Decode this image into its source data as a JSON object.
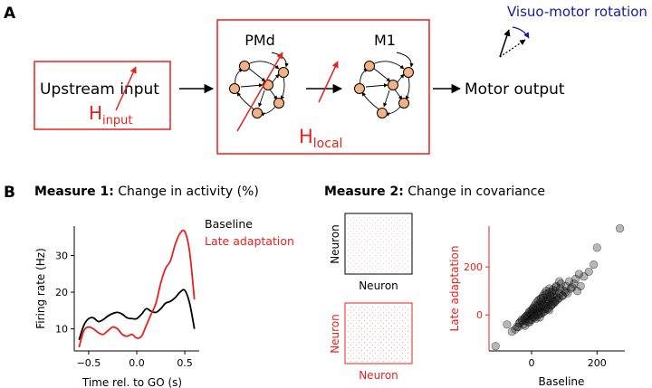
{
  "panel_a": {
    "label": "A",
    "upstream_label": "Upstream input",
    "h_input_main": "H",
    "h_input_sub": "input",
    "pmd_label": "PMd",
    "m1_label": "M1",
    "h_local_main": "H",
    "h_local_sub": "local",
    "motor_output": "Motor output",
    "rotation_label": "Visuo-motor rotation"
  },
  "panel_b": {
    "label": "B",
    "measure1_bold": "Measure 1:",
    "measure1_text": " Change in activity (%)",
    "measure2_bold": "Measure 2:",
    "measure2_text": " Change in covariance",
    "cov_baseline_ylabel": "Neuron",
    "cov_baseline_xlabel": "Neuron",
    "cov_late_ylabel": "Neuron",
    "cov_late_xlabel": "Neuron"
  },
  "colors": {
    "red": "#e8201c",
    "node_fill": "#f4b183",
    "navy": "#1a1a9e",
    "black": "#000000"
  },
  "chart_data": [
    {
      "type": "line",
      "title": "",
      "xlabel": "Time rel. to GO (s)",
      "ylabel": "Firing rate (Hz)",
      "xlim": [
        -0.65,
        0.65
      ],
      "ylim": [
        4,
        38
      ],
      "xticks": [
        -0.5,
        0.0,
        0.5
      ],
      "xtick_labels": [
        "−0.5",
        "0.0",
        "0.5"
      ],
      "yticks": [
        10,
        20,
        30
      ],
      "ytick_labels": [
        "10",
        "20",
        "30"
      ],
      "legend": "top-right",
      "series": [
        {
          "name": "Baseline",
          "color": "#000000",
          "x": [
            -0.6,
            -0.55,
            -0.5,
            -0.45,
            -0.4,
            -0.35,
            -0.3,
            -0.25,
            -0.2,
            -0.15,
            -0.1,
            -0.05,
            0.0,
            0.05,
            0.1,
            0.15,
            0.2,
            0.25,
            0.3,
            0.35,
            0.4,
            0.45,
            0.5,
            0.55,
            0.6
          ],
          "values": [
            7,
            11,
            12.8,
            13,
            12,
            12.5,
            13.5,
            14.2,
            14.5,
            14,
            13,
            12.8,
            12.8,
            14,
            15.5,
            14.8,
            14.5,
            15.5,
            17,
            17.5,
            18.5,
            20,
            20.5,
            17,
            10
          ]
        },
        {
          "name": "Late adaptation",
          "color": "#e8201c",
          "x": [
            -0.6,
            -0.55,
            -0.5,
            -0.45,
            -0.4,
            -0.35,
            -0.3,
            -0.25,
            -0.2,
            -0.15,
            -0.1,
            -0.05,
            0.0,
            0.05,
            0.1,
            0.15,
            0.2,
            0.25,
            0.3,
            0.35,
            0.4,
            0.45,
            0.5,
            0.55,
            0.6
          ],
          "values": [
            5,
            9.5,
            10.5,
            10,
            9,
            8.5,
            9.5,
            10.5,
            10,
            8.5,
            8,
            8.5,
            7.5,
            8,
            11,
            14,
            17,
            22.5,
            26.5,
            28.5,
            33,
            36,
            36.5,
            31,
            18
          ]
        }
      ]
    },
    {
      "type": "scatter",
      "title": "",
      "xlabel": "Baseline",
      "ylabel": "Late adaptation",
      "xlim": [
        -130,
        285
      ],
      "ylim": [
        -150,
        370
      ],
      "xticks": [
        0,
        200
      ],
      "xtick_labels": [
        "0",
        "200"
      ],
      "yticks": [
        0,
        200
      ],
      "ytick_labels": [
        "0",
        "200"
      ],
      "points_x": [
        -110,
        -75,
        -50,
        -40,
        -35,
        -30,
        -25,
        -20,
        -18,
        -15,
        -12,
        -10,
        -8,
        -5,
        -3,
        0,
        0,
        2,
        3,
        5,
        5,
        8,
        10,
        10,
        12,
        15,
        15,
        18,
        20,
        20,
        22,
        25,
        25,
        28,
        30,
        30,
        32,
        35,
        35,
        38,
        40,
        40,
        42,
        45,
        45,
        48,
        50,
        50,
        52,
        55,
        55,
        58,
        60,
        60,
        62,
        65,
        68,
        70,
        72,
        75,
        78,
        80,
        85,
        88,
        90,
        95,
        100,
        105,
        110,
        115,
        120,
        130,
        135,
        140,
        145,
        150,
        160,
        175,
        190,
        200,
        270,
        -60,
        -45,
        -38,
        -28,
        -22,
        -16,
        -6,
        6,
        14,
        24,
        34,
        44,
        54,
        64,
        74,
        84,
        94,
        104,
        124,
        -20,
        -10,
        0,
        10,
        20,
        30,
        40,
        50,
        60,
        70,
        25,
        35,
        15,
        5,
        -5,
        45,
        55,
        65,
        75,
        85
      ],
      "points_y": [
        -130,
        -40,
        -60,
        -50,
        -30,
        -20,
        -40,
        -10,
        -25,
        -15,
        0,
        -5,
        10,
        -20,
        5,
        0,
        20,
        -10,
        15,
        10,
        30,
        -5,
        20,
        40,
        0,
        25,
        50,
        10,
        35,
        60,
        15,
        45,
        -10,
        30,
        55,
        70,
        20,
        40,
        80,
        35,
        50,
        90,
        25,
        60,
        100,
        45,
        75,
        30,
        65,
        55,
        110,
        80,
        40,
        70,
        95,
        60,
        85,
        50,
        100,
        120,
        75,
        65,
        90,
        110,
        130,
        80,
        100,
        120,
        90,
        140,
        110,
        130,
        150,
        100,
        170,
        120,
        160,
        180,
        210,
        280,
        360,
        -70,
        -50,
        -35,
        -25,
        -15,
        -5,
        -30,
        0,
        -15,
        5,
        10,
        35,
        20,
        45,
        60,
        70,
        80,
        95,
        115,
        -45,
        -30,
        -20,
        -10,
        0,
        5,
        15,
        25,
        40,
        55,
        65,
        70,
        35,
        25,
        15,
        85,
        95,
        105,
        115,
        140
      ]
    }
  ]
}
